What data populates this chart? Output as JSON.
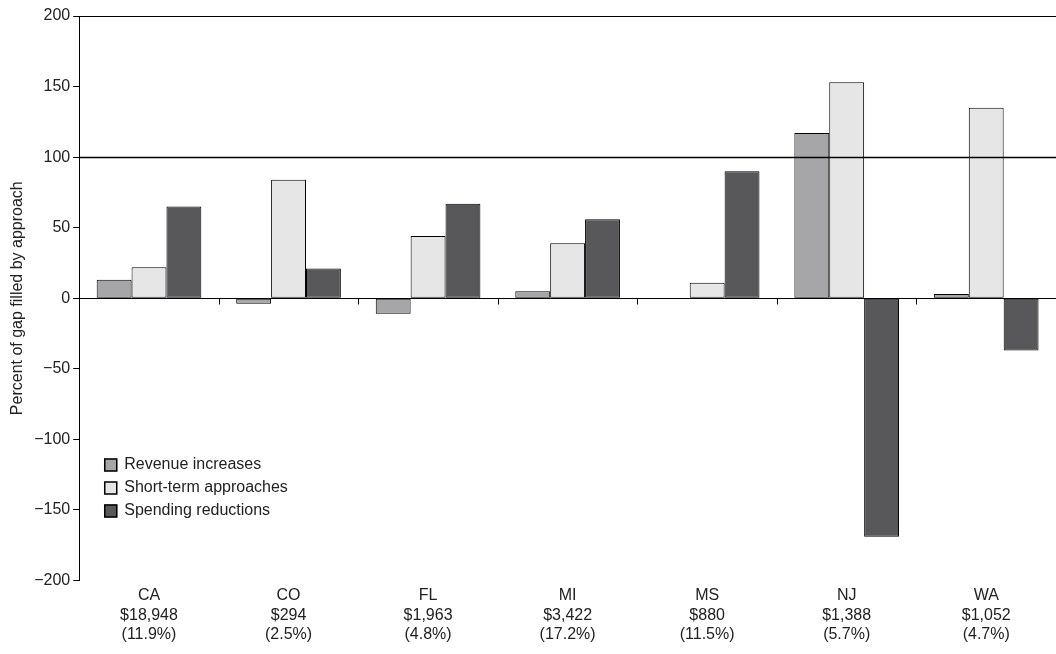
{
  "chart_data": {
    "type": "bar",
    "ylabel": "Percent of gap filled by approach",
    "categories": [
      "CA\n$18,948\n(11.9%)",
      "CO\n$294\n(2.5%)",
      "FL\n$1,963\n(4.8%)",
      "MI\n$3,422\n(17.2%)",
      "MS\n$880\n(11.5%)",
      "NJ\n$1,388\n(5.7%)",
      "WA\n$1,052\n(4.7%)"
    ],
    "series": [
      {
        "name": "Revenue increases",
        "color": "#a6a6a8",
        "values": [
          13,
          -4,
          -11,
          5,
          0,
          117,
          3
        ]
      },
      {
        "name": "Short-term approaches",
        "color": "#e6e6e6",
        "values": [
          22,
          84,
          44,
          39,
          11,
          153,
          135
        ]
      },
      {
        "name": "Spending reductions",
        "color": "#58585a",
        "values": [
          65,
          21,
          67,
          56,
          90,
          -169,
          -37
        ]
      }
    ],
    "ylim": [
      -200,
      200
    ],
    "yticks": [
      {
        "value": -200,
        "label": "−200"
      },
      {
        "value": -150,
        "label": "−150"
      },
      {
        "value": -100,
        "label": "−100"
      },
      {
        "value": -50,
        "label": "−50"
      },
      0,
      50,
      100,
      150,
      200
    ],
    "ref_lines": [
      {
        "axis": "y",
        "value": 100,
        "color": "#000000"
      }
    ],
    "grid": false,
    "legend": "bottom left"
  }
}
